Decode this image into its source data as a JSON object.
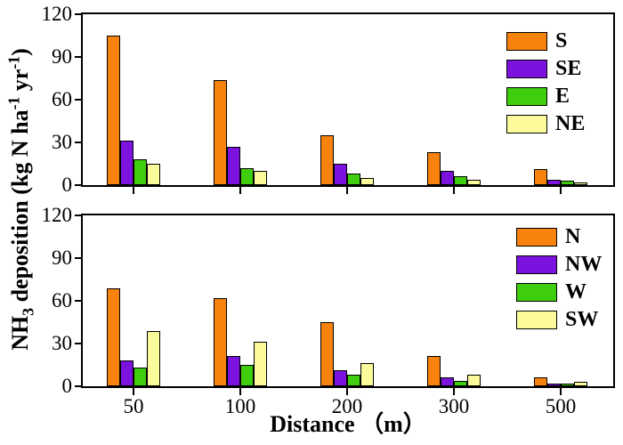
{
  "chart_data": {
    "type": "bar",
    "categories": [
      "50",
      "100",
      "200",
      "300",
      "500"
    ],
    "xlabel": "Distance （m）",
    "ylabel": "NH₃ deposition (kg N ha⁻¹ yr⁻¹)",
    "ylabel_parts": [
      {
        "t": "NH"
      },
      {
        "sub": "3"
      },
      {
        "t": " deposition (kg N ha"
      },
      {
        "sup": "-1"
      },
      {
        "t": " yr"
      },
      {
        "sup": "-1"
      },
      {
        "t": ")"
      }
    ],
    "ylim": [
      0,
      120
    ],
    "yticks": [
      0,
      30,
      60,
      90,
      120
    ],
    "grid": false,
    "legend_position": "upper right",
    "bar_border_color": "#000000",
    "axis_color": "#000000",
    "panels": [
      {
        "name": "upper",
        "legend": [
          "S",
          "SE",
          "E",
          "NE"
        ],
        "series": [
          {
            "name": "S",
            "color": "#F8820E",
            "values": [
              105,
              74,
              35,
              23,
              11
            ]
          },
          {
            "name": "SE",
            "color": "#7C12DE",
            "values": [
              31,
              27,
              15,
              10,
              4
            ]
          },
          {
            "name": "E",
            "color": "#3FCE0E",
            "values": [
              18,
              12,
              8,
              6,
              3
            ]
          },
          {
            "name": "NE",
            "color": "#FBFB9B",
            "values": [
              15,
              10,
              5,
              4,
              2
            ]
          }
        ]
      },
      {
        "name": "lower",
        "legend": [
          "N",
          "NW",
          "W",
          "SW"
        ],
        "series": [
          {
            "name": "N",
            "color": "#F8820E",
            "values": [
              69,
              62,
              45,
              21,
              6
            ]
          },
          {
            "name": "NW",
            "color": "#7C12DE",
            "values": [
              18,
              21,
              11,
              6,
              2
            ]
          },
          {
            "name": "W",
            "color": "#3FCE0E",
            "values": [
              13,
              15,
              8,
              4,
              2
            ]
          },
          {
            "name": "SW",
            "color": "#FBFB9B",
            "values": [
              39,
              31,
              16,
              8,
              3
            ]
          }
        ]
      }
    ]
  }
}
